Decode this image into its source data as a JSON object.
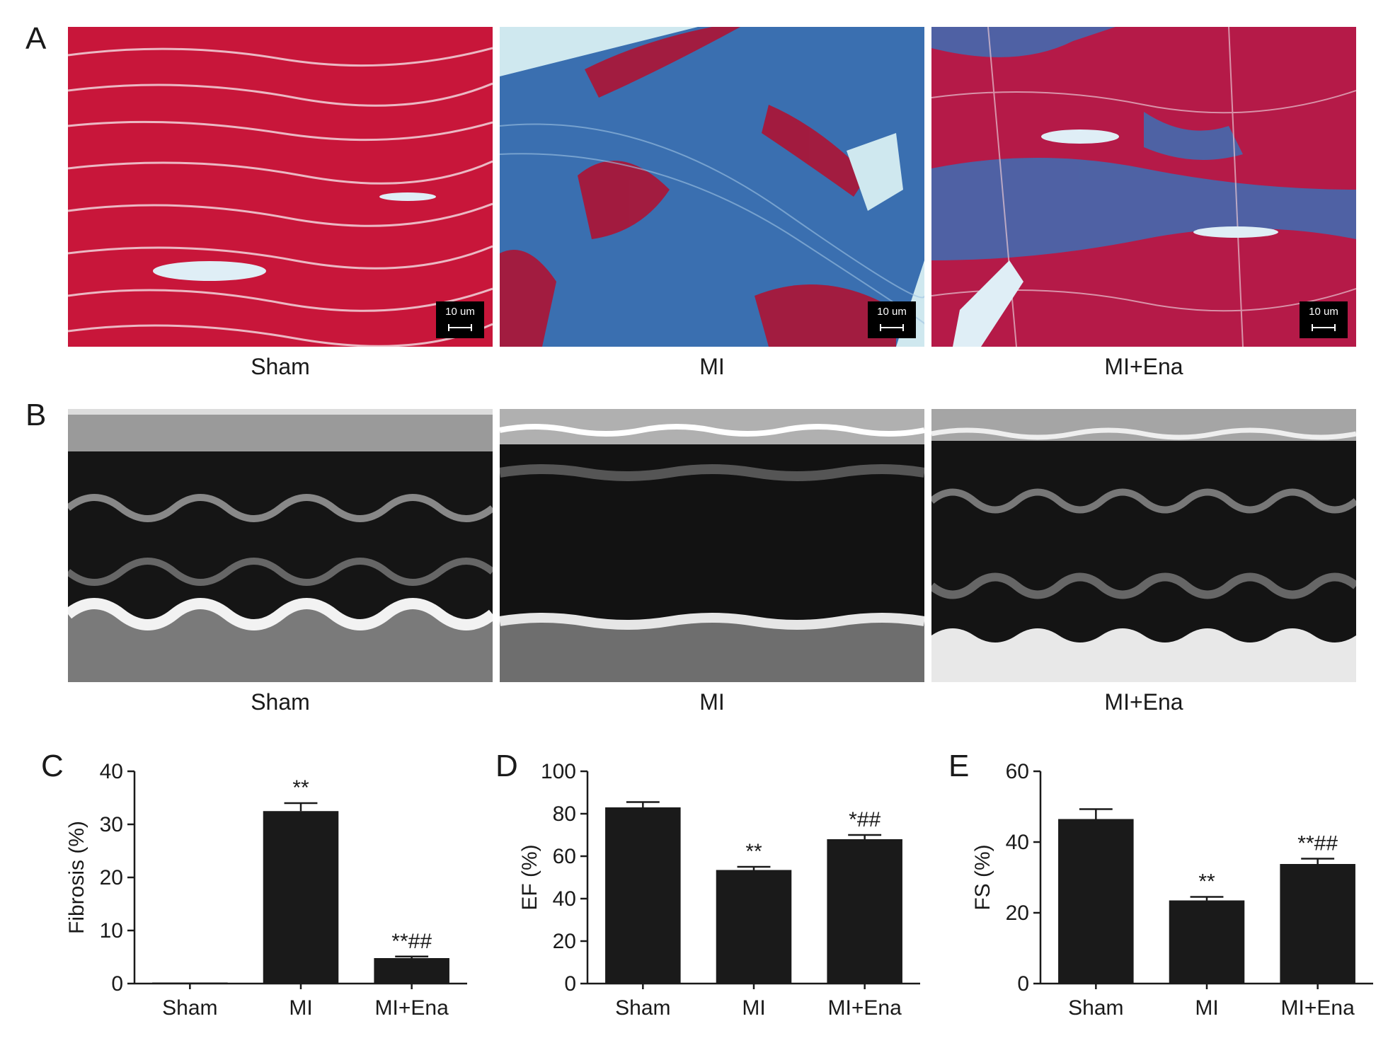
{
  "panels": {
    "a": "A",
    "b": "B",
    "c": "C",
    "d": "D",
    "e": "E"
  },
  "histology": {
    "images": [
      {
        "caption": "Sham",
        "scale_label": "10 um",
        "base_color": "#c8163a"
      },
      {
        "caption": "MI",
        "scale_label": "10 um",
        "base_color": "#3a6fb0"
      },
      {
        "caption": "MI+Ena",
        "scale_label": "10 um",
        "base_color": "#b51a48"
      }
    ]
  },
  "echo": {
    "images": [
      {
        "caption": "Sham"
      },
      {
        "caption": "MI"
      },
      {
        "caption": "MI+Ena"
      }
    ]
  },
  "chart_data": [
    {
      "type": "bar",
      "ylabel": "Fibrosis (%)",
      "categories": [
        "Sham",
        "MI",
        "MI+Ena"
      ],
      "values": [
        0.2,
        32.5,
        4.8
      ],
      "errors": [
        0,
        1.5,
        0.3
      ],
      "annotations": [
        "",
        "**",
        "**##"
      ],
      "ylim": [
        0,
        40
      ],
      "yticks": [
        0,
        10,
        20,
        30,
        40
      ],
      "bar_color": "#1a1a1a"
    },
    {
      "type": "bar",
      "ylabel": "EF (%)",
      "categories": [
        "Sham",
        "MI",
        "MI+Ena"
      ],
      "values": [
        83,
        53.5,
        68
      ],
      "errors": [
        2.5,
        1.5,
        2
      ],
      "annotations": [
        "",
        "**",
        "*##"
      ],
      "ylim": [
        0,
        100
      ],
      "yticks": [
        0,
        20,
        40,
        60,
        80,
        100
      ],
      "bar_color": "#1a1a1a"
    },
    {
      "type": "bar",
      "ylabel": "FS (%)",
      "categories": [
        "Sham",
        "MI",
        "MI+Ena"
      ],
      "values": [
        46.5,
        23.5,
        33.8
      ],
      "errors": [
        2.8,
        1,
        1.5
      ],
      "annotations": [
        "",
        "**",
        "**##"
      ],
      "ylim": [
        0,
        60
      ],
      "yticks": [
        0,
        20,
        40,
        60
      ],
      "bar_color": "#1a1a1a"
    }
  ]
}
